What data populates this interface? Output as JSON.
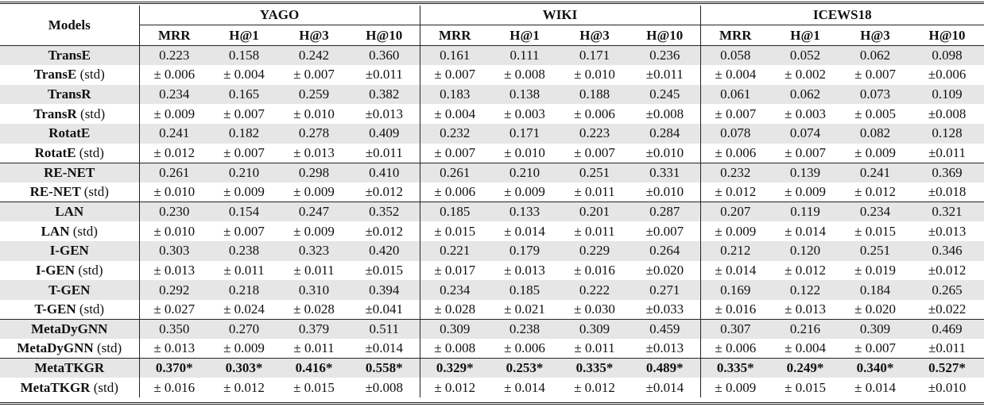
{
  "header": {
    "models_label": "Models",
    "datasets": [
      "YAGO",
      "WIKI",
      "ICEWS18"
    ],
    "metrics": [
      "MRR",
      "H@1",
      "H@3",
      "H@10"
    ]
  },
  "std_suffix": "(std)",
  "groups_start_rows": [
    6,
    8,
    14,
    16
  ],
  "rows": [
    {
      "model": "TransE",
      "std": false,
      "values": [
        "0.223",
        "0.158",
        "0.242",
        "0.360",
        "0.161",
        "0.111",
        "0.171",
        "0.236",
        "0.058",
        "0.052",
        "0.062",
        "0.098"
      ]
    },
    {
      "model": "TransE",
      "std": true,
      "values": [
        "± 0.006",
        "± 0.004",
        "± 0.007",
        "±0.011",
        "± 0.007",
        "± 0.008",
        "± 0.010",
        "±0.011",
        "± 0.004",
        "± 0.002",
        "± 0.007",
        "±0.006"
      ]
    },
    {
      "model": "TransR",
      "std": false,
      "values": [
        "0.234",
        "0.165",
        "0.259",
        "0.382",
        "0.183",
        "0.138",
        "0.188",
        "0.245",
        "0.061",
        "0.062",
        "0.073",
        "0.109"
      ]
    },
    {
      "model": "TransR",
      "std": true,
      "values": [
        "± 0.009",
        "± 0.007",
        "± 0.010",
        "±0.013",
        "± 0.004",
        "± 0.003",
        "± 0.006",
        "±0.008",
        "± 0.007",
        "± 0.003",
        "± 0.005",
        "±0.008"
      ]
    },
    {
      "model": "RotatE",
      "std": false,
      "values": [
        "0.241",
        "0.182",
        "0.278",
        "0.409",
        "0.232",
        "0.171",
        "0.223",
        "0.284",
        "0.078",
        "0.074",
        "0.082",
        "0.128"
      ]
    },
    {
      "model": "RotatE",
      "std": true,
      "values": [
        "± 0.012",
        "± 0.007",
        "± 0.013",
        "±0.011",
        "± 0.007",
        "± 0.010",
        "± 0.007",
        "±0.010",
        "± 0.006",
        "± 0.007",
        "± 0.009",
        "±0.011"
      ]
    },
    {
      "model": "RE-NET",
      "std": false,
      "values": [
        "0.261",
        "0.210",
        "0.298",
        "0.410",
        "0.261",
        "0.210",
        "0.251",
        "0.331",
        "0.232",
        "0.139",
        "0.241",
        "0.369"
      ]
    },
    {
      "model": "RE-NET",
      "std": true,
      "values": [
        "± 0.010",
        "± 0.009",
        "± 0.009",
        "±0.012",
        "± 0.006",
        "± 0.009",
        "± 0.011",
        "±0.010",
        "± 0.012",
        "± 0.009",
        "± 0.012",
        "±0.018"
      ]
    },
    {
      "model": "LAN",
      "std": false,
      "values": [
        "0.230",
        "0.154",
        "0.247",
        "0.352",
        "0.185",
        "0.133",
        "0.201",
        "0.287",
        "0.207",
        "0.119",
        "0.234",
        "0.321"
      ]
    },
    {
      "model": "LAN",
      "std": true,
      "values": [
        "± 0.010",
        "± 0.007",
        "± 0.009",
        "±0.012",
        "± 0.015",
        "± 0.014",
        "± 0.011",
        "±0.007",
        "± 0.009",
        "± 0.014",
        "± 0.015",
        "±0.013"
      ]
    },
    {
      "model": "I-GEN",
      "std": false,
      "values": [
        "0.303",
        "0.238",
        "0.323",
        "0.420",
        "0.221",
        "0.179",
        "0.229",
        "0.264",
        "0.212",
        "0.120",
        "0.251",
        "0.346"
      ]
    },
    {
      "model": "I-GEN",
      "std": true,
      "values": [
        "± 0.013",
        "± 0.011",
        "± 0.011",
        "±0.015",
        "± 0.017",
        "± 0.013",
        "± 0.016",
        "±0.020",
        "± 0.014",
        "± 0.012",
        "± 0.019",
        "±0.012"
      ]
    },
    {
      "model": "T-GEN",
      "std": false,
      "values": [
        "0.292",
        "0.218",
        "0.310",
        "0.394",
        "0.234",
        "0.185",
        "0.222",
        "0.271",
        "0.169",
        "0.122",
        "0.184",
        "0.265"
      ]
    },
    {
      "model": "T-GEN",
      "std": true,
      "values": [
        "± 0.027",
        "± 0.024",
        "± 0.028",
        "±0.041",
        "± 0.028",
        "± 0.021",
        "± 0.030",
        "±0.033",
        "± 0.016",
        "± 0.013",
        "± 0.020",
        "±0.022"
      ]
    },
    {
      "model": "MetaDyGNN",
      "std": false,
      "values": [
        "0.350",
        "0.270",
        "0.379",
        "0.511",
        "0.309",
        "0.238",
        "0.309",
        "0.459",
        "0.307",
        "0.216",
        "0.309",
        "0.469"
      ]
    },
    {
      "model": "MetaDyGNN",
      "std": true,
      "values": [
        "± 0.013",
        "± 0.009",
        "± 0.011",
        "±0.014",
        "± 0.008",
        "± 0.006",
        "± 0.011",
        "±0.013",
        "± 0.006",
        "± 0.004",
        "± 0.007",
        "±0.011"
      ]
    },
    {
      "model": "MetaTKGR",
      "std": false,
      "best": true,
      "values": [
        "0.370*",
        "0.303*",
        "0.416*",
        "0.558*",
        "0.329*",
        "0.253*",
        "0.335*",
        "0.489*",
        "0.335*",
        "0.249*",
        "0.340*",
        "0.527*"
      ]
    },
    {
      "model": "MetaTKGR",
      "std": true,
      "values": [
        "± 0.016",
        "± 0.012",
        "± 0.015",
        "±0.008",
        "± 0.012",
        "± 0.014",
        "± 0.012",
        "±0.014",
        "± 0.009",
        "± 0.015",
        "± 0.014",
        "±0.010"
      ]
    }
  ]
}
